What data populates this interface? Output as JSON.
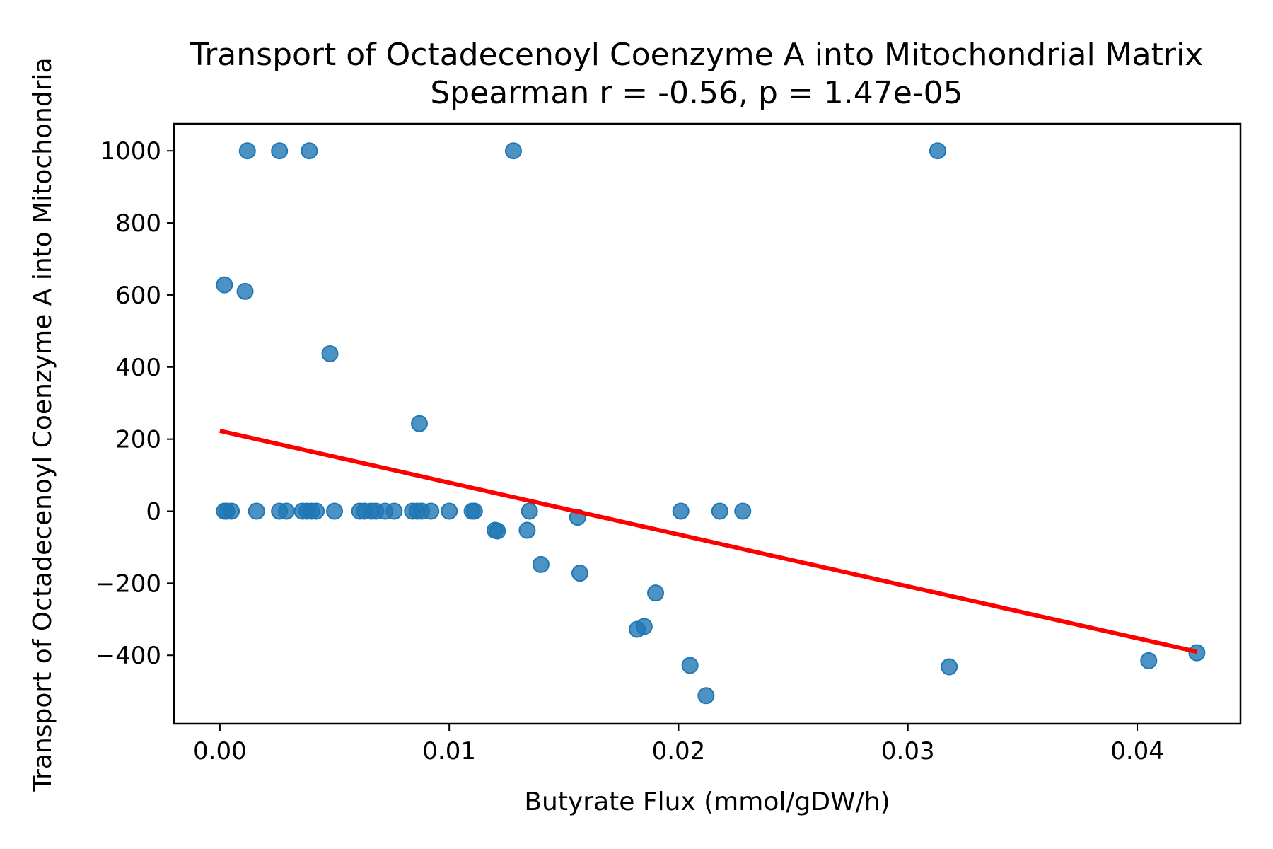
{
  "chart_data": {
    "type": "scatter",
    "title": "Transport of Octadecenoyl Coenzyme A into Mitochondrial Matrix",
    "subtitle": "Spearman r = -0.56, p = 1.47e-05",
    "xlabel": "Butyrate Flux (mmol/gDW/h)",
    "ylabel": "Transport of Octadecenoyl Coenzyme A into Mitochondria",
    "xlim": [
      -0.002,
      0.0445
    ],
    "ylim": [
      -590,
      1075
    ],
    "xticks": [
      0.0,
      0.01,
      0.02,
      0.03,
      0.04
    ],
    "xtick_labels": [
      "0.00",
      "0.01",
      "0.02",
      "0.03",
      "0.04"
    ],
    "yticks": [
      -400,
      -200,
      0,
      200,
      400,
      600,
      800,
      1000
    ],
    "ytick_labels": [
      "−400",
      "−200",
      "0",
      "200",
      "400",
      "600",
      "800",
      "1000"
    ],
    "grid": false,
    "legend": "none",
    "colors": {
      "points": "#1f77b4",
      "trend": "#ff0000"
    },
    "points": [
      {
        "x": 0.0012,
        "y": 1000
      },
      {
        "x": 0.0026,
        "y": 1000
      },
      {
        "x": 0.0039,
        "y": 1000
      },
      {
        "x": 0.0128,
        "y": 1000
      },
      {
        "x": 0.0313,
        "y": 1000
      },
      {
        "x": 0.0002,
        "y": 628
      },
      {
        "x": 0.0011,
        "y": 610
      },
      {
        "x": 0.0048,
        "y": 437
      },
      {
        "x": 0.0087,
        "y": 243
      },
      {
        "x": 0.0002,
        "y": 0
      },
      {
        "x": 0.0003,
        "y": 0
      },
      {
        "x": 0.0005,
        "y": 0
      },
      {
        "x": 0.0016,
        "y": 0
      },
      {
        "x": 0.0026,
        "y": 0
      },
      {
        "x": 0.0029,
        "y": 0
      },
      {
        "x": 0.0036,
        "y": 0
      },
      {
        "x": 0.0038,
        "y": 0
      },
      {
        "x": 0.004,
        "y": 0
      },
      {
        "x": 0.0042,
        "y": 0
      },
      {
        "x": 0.005,
        "y": 0
      },
      {
        "x": 0.0061,
        "y": 0
      },
      {
        "x": 0.0063,
        "y": 0
      },
      {
        "x": 0.0066,
        "y": 0
      },
      {
        "x": 0.0068,
        "y": 0
      },
      {
        "x": 0.0072,
        "y": 0
      },
      {
        "x": 0.0076,
        "y": 0
      },
      {
        "x": 0.0084,
        "y": 0
      },
      {
        "x": 0.0086,
        "y": 0
      },
      {
        "x": 0.0088,
        "y": 0
      },
      {
        "x": 0.0092,
        "y": 0
      },
      {
        "x": 0.01,
        "y": 0
      },
      {
        "x": 0.011,
        "y": 0
      },
      {
        "x": 0.0111,
        "y": 0
      },
      {
        "x": 0.012,
        "y": -53
      },
      {
        "x": 0.0121,
        "y": -55
      },
      {
        "x": 0.0134,
        "y": -53
      },
      {
        "x": 0.0135,
        "y": 0
      },
      {
        "x": 0.014,
        "y": -148
      },
      {
        "x": 0.0156,
        "y": -17
      },
      {
        "x": 0.0157,
        "y": -172
      },
      {
        "x": 0.0182,
        "y": -328
      },
      {
        "x": 0.0185,
        "y": -320
      },
      {
        "x": 0.019,
        "y": -227
      },
      {
        "x": 0.0201,
        "y": 0
      },
      {
        "x": 0.0205,
        "y": -428
      },
      {
        "x": 0.0212,
        "y": -512
      },
      {
        "x": 0.0218,
        "y": 0
      },
      {
        "x": 0.0228,
        "y": 0
      },
      {
        "x": 0.0318,
        "y": -432
      },
      {
        "x": 0.0405,
        "y": -415
      },
      {
        "x": 0.0426,
        "y": -393
      }
    ],
    "trendline": {
      "x": [
        0.0,
        0.0426
      ],
      "y": [
        223,
        -390
      ]
    }
  }
}
